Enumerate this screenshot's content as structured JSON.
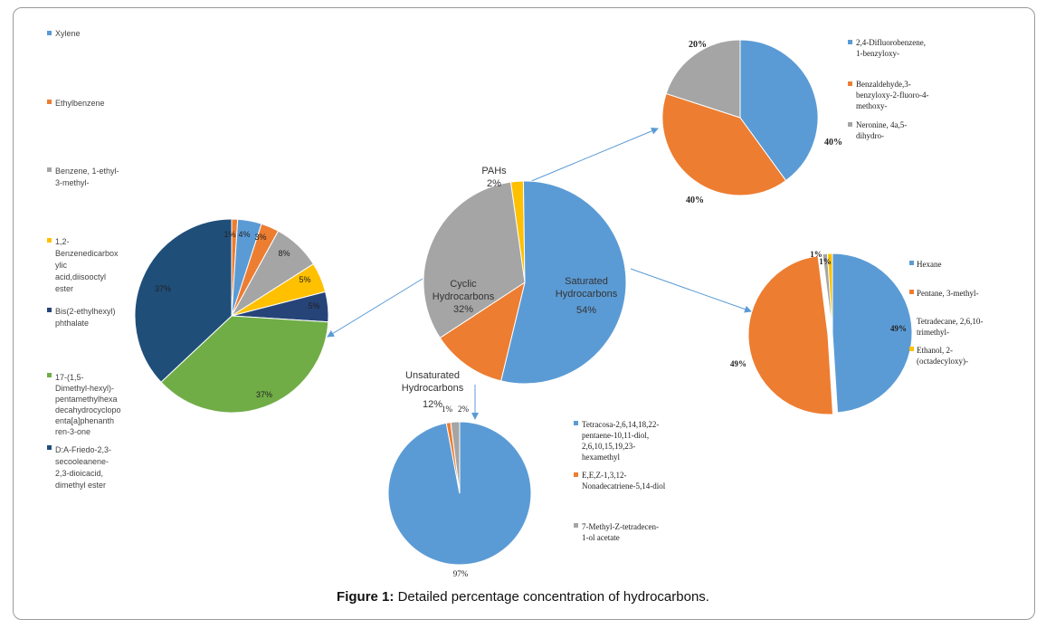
{
  "caption": {
    "label": "Figure 1:",
    "text": "Detailed percentage concentration of hydrocarbons."
  },
  "colors": {
    "blue": "#5b9bd5",
    "orange": "#ed7d31",
    "gray": "#a5a5a5",
    "yellow": "#ffc000",
    "darkblue": "#264478",
    "green": "#70ad47",
    "navy": "#1f4e79",
    "arrow": "#5b9bd5"
  },
  "chart_data": [
    {
      "id": "main",
      "type": "pie",
      "slices": [
        {
          "label": "Saturated Hydrocarbons",
          "pct": "54%",
          "value": 54,
          "color": "blue"
        },
        {
          "label": "Unsaturated Hydrocarbons",
          "pct": "12%",
          "value": 12,
          "color": "orange"
        },
        {
          "label": "Cyclic Hydrocarbons",
          "pct": "32%",
          "value": 32,
          "color": "gray"
        },
        {
          "label": "PAHs",
          "pct": "2%",
          "value": 2,
          "color": "yellow"
        }
      ]
    },
    {
      "id": "cyclic",
      "type": "pie",
      "legend_position": "left",
      "slices": [
        {
          "label": "Xylene",
          "pct": "4%",
          "value": 4,
          "color": "blue"
        },
        {
          "label": "Ethylbenzene",
          "pct": "3%",
          "value": 3,
          "color": "orange"
        },
        {
          "label": "Benzene, 1-ethyl-3-methyl-",
          "pct": "8%",
          "value": 8,
          "color": "gray"
        },
        {
          "label": "1,2-Benzenedicarboxylic acid,diisooctyl ester",
          "pct": "5%",
          "value": 5,
          "color": "yellow"
        },
        {
          "label": "Bis(2-ethylhexyl) phthalate",
          "pct": "5%",
          "value": 5,
          "color": "darkblue"
        },
        {
          "label": "17-(1,5-Dimethyl-hexyl)-pentamethylhexadecahydrocyclopenta[a]phenanthren-3-one",
          "pct": "37%",
          "value": 37,
          "color": "green"
        },
        {
          "label": "D:A-Friedo-2,3-secooleanene-2,3-dioicacid, dimethyl ester",
          "pct": "37%",
          "value": 37,
          "color": "navy"
        },
        {
          "label": "",
          "pct": "1%",
          "value": 1,
          "color": "orange"
        }
      ]
    },
    {
      "id": "pahs",
      "type": "pie",
      "legend_position": "right",
      "slices": [
        {
          "label": "2,4-Difluorobenzene, 1-benzyloxy-",
          "pct": "40%",
          "value": 40,
          "color": "blue"
        },
        {
          "label": "Benzaldehyde,3-benzyloxy-2-fluoro-4-methoxy-",
          "pct": "40%",
          "value": 40,
          "color": "orange"
        },
        {
          "label": "Neronine, 4a,5-dihydro-",
          "pct": "20%",
          "value": 20,
          "color": "gray"
        }
      ]
    },
    {
      "id": "saturated",
      "type": "pie",
      "legend_position": "right",
      "slices": [
        {
          "label": "Hexane",
          "pct": "49%",
          "value": 49,
          "color": "blue"
        },
        {
          "label": "Pentane, 3-methyl-",
          "pct": "49%",
          "value": 49,
          "color": "orange"
        },
        {
          "label": "Tetradecane, 2,6,10-trimethyl-",
          "pct": "1%",
          "value": 1,
          "color": "gray"
        },
        {
          "label": "Ethanol, 2-(octadecyloxy)-",
          "pct": "1%",
          "value": 1,
          "color": "yellow"
        }
      ]
    },
    {
      "id": "unsaturated",
      "type": "pie",
      "legend_position": "right",
      "slices": [
        {
          "label": "Tetracosa-2,6,14,18,22-pentaene-10,11-diol, 2,6,10,15,19,23-hexamethyl",
          "pct": "97%",
          "value": 97,
          "color": "blue"
        },
        {
          "label": "E,E,Z-1,3,12-Nonadecatriene-5,14-diol",
          "pct": "1%",
          "value": 1,
          "color": "orange"
        },
        {
          "label": "7-Methyl-Z-tetradecen-1-ol acetate",
          "pct": "2%",
          "value": 2,
          "color": "gray"
        }
      ]
    }
  ]
}
